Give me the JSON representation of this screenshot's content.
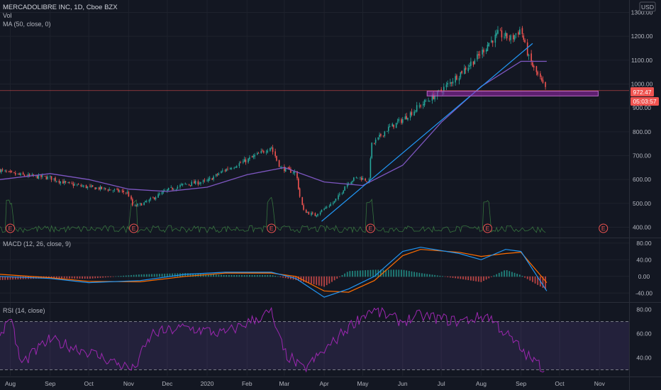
{
  "header": {
    "symbol_title": "MERCADOLIBRE INC, 1D, Cboe BZX",
    "vol_label": "Vol",
    "ma_label": "MA (50, close, 0)",
    "currency": "USD"
  },
  "price_tags": {
    "last_price": "972.47",
    "countdown": "05:03:57"
  },
  "macd_label": "MACD (12, 26, close, 9)",
  "rsi_label": "RSI (14, close)",
  "earnings_marker": "E",
  "colors": {
    "background": "#131722",
    "up": "#26a69a",
    "down": "#ef5350",
    "ma": "#7e57c2",
    "trendline": "#2196f3",
    "support_zone": "#9c27b0",
    "macd_line": "#2196f3",
    "signal_line": "#ff6d00",
    "rsi_line": "#9c27b0",
    "volume_line": "#4caf50"
  },
  "chart_data": [
    {
      "type": "candlestick",
      "title": "MERCADOLIBRE INC, 1D, Cboe BZX",
      "x_ticks": [
        "Aug",
        "Sep",
        "Oct",
        "Nov",
        "Dec",
        "2020",
        "Feb",
        "Mar",
        "Apr",
        "May",
        "Jun",
        "Jul",
        "Aug",
        "Sep",
        "Oct",
        "Nov"
      ],
      "y_ticks": [
        400,
        500,
        600,
        700,
        800,
        900,
        1000,
        1100,
        1200,
        1300
      ],
      "ylim": [
        360,
        1340
      ],
      "grid": true,
      "close_path": [
        [
          "2019-07-24",
          640
        ],
        [
          "2019-08-01",
          625
        ],
        [
          "2019-08-15",
          615
        ],
        [
          "2019-09-01",
          608
        ],
        [
          "2019-09-15",
          582
        ],
        [
          "2019-10-01",
          568
        ],
        [
          "2019-10-15",
          560
        ],
        [
          "2019-11-01",
          545
        ],
        [
          "2019-11-05",
          485
        ],
        [
          "2019-11-15",
          505
        ],
        [
          "2019-12-01",
          555
        ],
        [
          "2019-12-15",
          580
        ],
        [
          "2020-01-01",
          592
        ],
        [
          "2020-01-15",
          640
        ],
        [
          "2020-02-01",
          680
        ],
        [
          "2020-02-15",
          720
        ],
        [
          "2020-02-20",
          740
        ],
        [
          "2020-02-27",
          650
        ],
        [
          "2020-03-10",
          630
        ],
        [
          "2020-03-16",
          470
        ],
        [
          "2020-03-25",
          450
        ],
        [
          "2020-04-10",
          510
        ],
        [
          "2020-04-20",
          590
        ],
        [
          "2020-04-28",
          610
        ],
        [
          "2020-05-06",
          595
        ],
        [
          "2020-05-08",
          740
        ],
        [
          "2020-05-20",
          810
        ],
        [
          "2020-06-01",
          850
        ],
        [
          "2020-06-15",
          910
        ],
        [
          "2020-07-01",
          970
        ],
        [
          "2020-07-15",
          1040
        ],
        [
          "2020-07-31",
          1120
        ],
        [
          "2020-08-07",
          1170
        ],
        [
          "2020-08-15",
          1210
        ],
        [
          "2020-08-25",
          1190
        ],
        [
          "2020-09-01",
          1230
        ],
        [
          "2020-09-08",
          1100
        ],
        [
          "2020-09-15",
          1030
        ],
        [
          "2020-09-21",
          972.47
        ]
      ],
      "ma_50": {
        "name": "MA (50, close, 0)",
        "points": [
          [
            "2019-07-24",
            600
          ],
          [
            "2019-09-01",
            625
          ],
          [
            "2019-10-01",
            600
          ],
          [
            "2019-11-01",
            560
          ],
          [
            "2019-12-01",
            550
          ],
          [
            "2020-01-01",
            568
          ],
          [
            "2020-02-01",
            620
          ],
          [
            "2020-03-01",
            650
          ],
          [
            "2020-04-01",
            590
          ],
          [
            "2020-05-01",
            575
          ],
          [
            "2020-06-01",
            660
          ],
          [
            "2020-07-01",
            840
          ],
          [
            "2020-08-01",
            990
          ],
          [
            "2020-09-01",
            1095
          ],
          [
            "2020-09-21",
            1095
          ]
        ]
      },
      "last_price": 972.47,
      "trendline": [
        [
          "2020-03-30",
          425
        ],
        [
          "2020-09-10",
          1170
        ]
      ],
      "support_zone": [
        950,
        970
      ],
      "earnings_dates": [
        "2019-08-01",
        "2019-11-05",
        "2020-02-20",
        "2020-05-07",
        "2020-08-06",
        "2020-11-04"
      ]
    },
    {
      "type": "line",
      "title": "MACD (12, 26, close, 9)",
      "y_ticks": [
        -40,
        0,
        40,
        80
      ],
      "ylim": [
        -60,
        90
      ],
      "series": [
        {
          "name": "MACD",
          "points": [
            [
              "2019-07-24",
              0
            ],
            [
              "2019-09-01",
              -5
            ],
            [
              "2019-10-01",
              -15
            ],
            [
              "2019-11-10",
              -10
            ],
            [
              "2019-12-15",
              5
            ],
            [
              "2020-01-15",
              10
            ],
            [
              "2020-02-20",
              10
            ],
            [
              "2020-03-10",
              -5
            ],
            [
              "2020-04-01",
              -50
            ],
            [
              "2020-04-20",
              -30
            ],
            [
              "2020-05-10",
              0
            ],
            [
              "2020-06-01",
              60
            ],
            [
              "2020-06-15",
              70
            ],
            [
              "2020-07-15",
              55
            ],
            [
              "2020-08-01",
              40
            ],
            [
              "2020-08-20",
              65
            ],
            [
              "2020-09-01",
              60
            ],
            [
              "2020-09-21",
              -35
            ]
          ]
        },
        {
          "name": "Signal",
          "points": [
            [
              "2019-07-24",
              5
            ],
            [
              "2019-09-01",
              -3
            ],
            [
              "2019-10-01",
              -12
            ],
            [
              "2019-11-10",
              -13
            ],
            [
              "2019-12-15",
              0
            ],
            [
              "2020-01-15",
              8
            ],
            [
              "2020-02-20",
              8
            ],
            [
              "2020-03-10",
              0
            ],
            [
              "2020-04-01",
              -35
            ],
            [
              "2020-04-20",
              -38
            ],
            [
              "2020-05-10",
              -10
            ],
            [
              "2020-06-01",
              50
            ],
            [
              "2020-06-15",
              65
            ],
            [
              "2020-07-15",
              58
            ],
            [
              "2020-08-01",
              48
            ],
            [
              "2020-08-20",
              55
            ],
            [
              "2020-09-01",
              58
            ],
            [
              "2020-09-21",
              -15
            ]
          ]
        }
      ]
    },
    {
      "type": "line",
      "title": "RSI (14, close)",
      "y_ticks": [
        40,
        60,
        80
      ],
      "ylim": [
        25,
        85
      ],
      "bands": [
        30,
        70
      ],
      "series": [
        {
          "name": "RSI",
          "points": [
            [
              "2019-07-24",
              55
            ],
            [
              "2019-08-01",
              75
            ],
            [
              "2019-08-10",
              35
            ],
            [
              "2019-09-01",
              55
            ],
            [
              "2019-10-01",
              45
            ],
            [
              "2019-11-05",
              30
            ],
            [
              "2019-11-20",
              60
            ],
            [
              "2019-12-15",
              65
            ],
            [
              "2020-01-15",
              60
            ],
            [
              "2020-02-20",
              78
            ],
            [
              "2020-03-01",
              45
            ],
            [
              "2020-03-16",
              30
            ],
            [
              "2020-04-01",
              45
            ],
            [
              "2020-04-20",
              65
            ],
            [
              "2020-05-08",
              80
            ],
            [
              "2020-06-01",
              70
            ],
            [
              "2020-06-15",
              75
            ],
            [
              "2020-07-15",
              70
            ],
            [
              "2020-08-07",
              75
            ],
            [
              "2020-09-08",
              40
            ],
            [
              "2020-09-21",
              30
            ]
          ]
        }
      ]
    }
  ]
}
